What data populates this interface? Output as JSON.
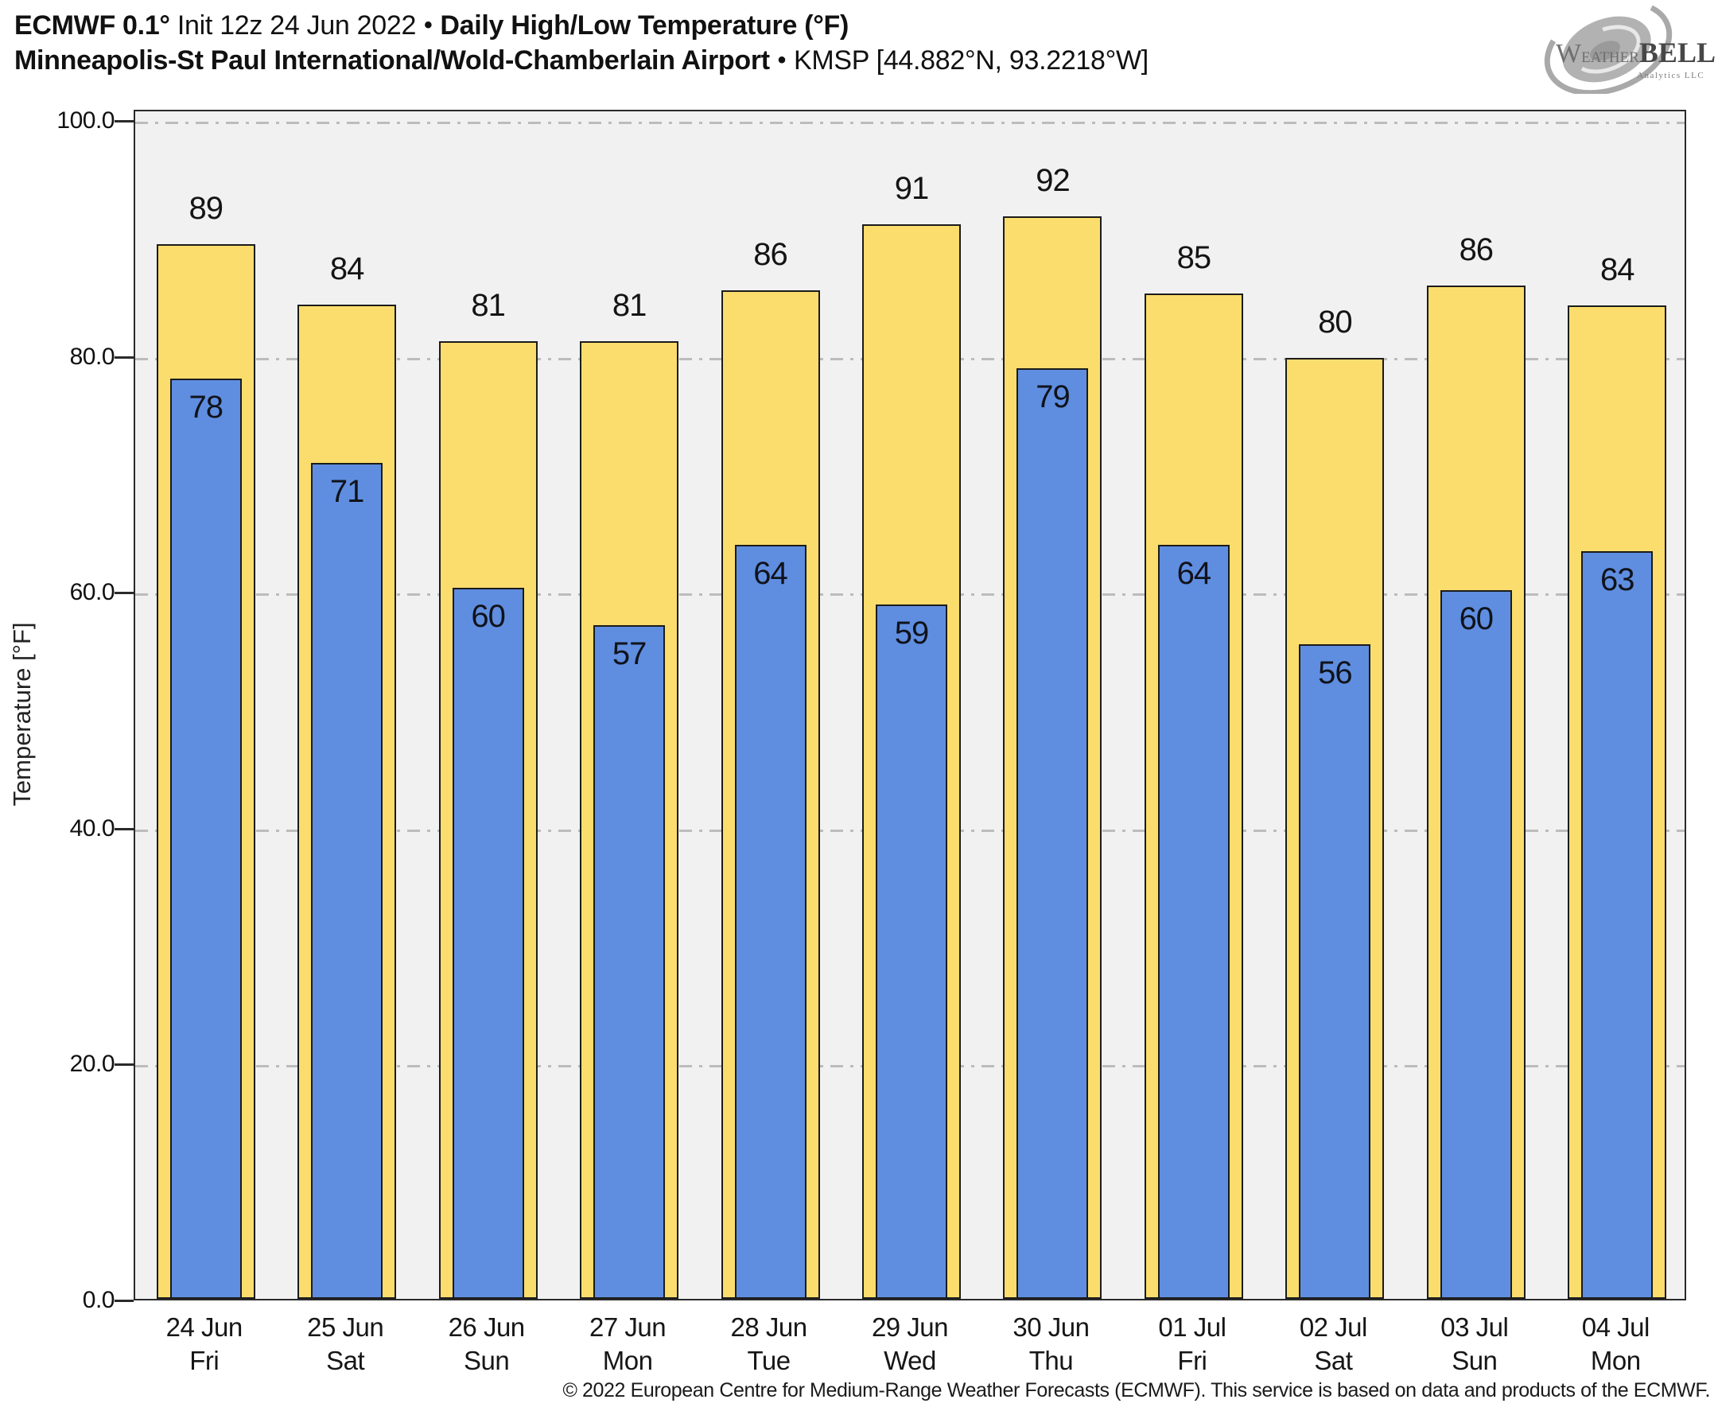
{
  "header": {
    "title_bold1": "ECMWF 0.1°",
    "title_regular": "Init 12z 24 Jun 2022",
    "bullet": "•",
    "title_bold2": "Daily High/Low Temperature (°F)",
    "subtitle_bold": "Minneapolis-St Paul International/Wold-Chamberlain Airport",
    "subtitle_regular": "KMSP [44.882°N, 93.2218°W]"
  },
  "logo": {
    "word_w": "W",
    "word_eather": "EATHER",
    "word_bell": "BELL",
    "tagline": "Analytics LLC"
  },
  "chart_data": {
    "type": "bar",
    "title": "ECMWF 0.1° Init 12z 24 Jun 2022 • Daily High/Low Temperature (°F) — Minneapolis-St Paul International/Wold-Chamberlain Airport KMSP",
    "xlabel": "",
    "ylabel": "Temperature [°F]",
    "ylim": [
      0,
      101
    ],
    "grid": true,
    "legend_position": "none",
    "yticks": [
      0,
      20,
      40,
      60,
      80,
      100
    ],
    "ytick_labels": [
      "0.0",
      "20.0",
      "40.0",
      "60.0",
      "80.0",
      "100.0"
    ],
    "categories": [
      {
        "date": "24 Jun",
        "day": "Fri"
      },
      {
        "date": "25 Jun",
        "day": "Sat"
      },
      {
        "date": "26 Jun",
        "day": "Sun"
      },
      {
        "date": "27 Jun",
        "day": "Mon"
      },
      {
        "date": "28 Jun",
        "day": "Tue"
      },
      {
        "date": "29 Jun",
        "day": "Wed"
      },
      {
        "date": "30 Jun",
        "day": "Thu"
      },
      {
        "date": "01 Jul",
        "day": "Fri"
      },
      {
        "date": "02 Jul",
        "day": "Sat"
      },
      {
        "date": "03 Jul",
        "day": "Sun"
      },
      {
        "date": "04 Jul",
        "day": "Mon"
      }
    ],
    "series": [
      {
        "name": "Daily High",
        "color": "#fbdd6d",
        "values": [
          89,
          84,
          81,
          81,
          86,
          91,
          92,
          85,
          80,
          86,
          84
        ],
        "plot_heights": [
          89.4,
          84.3,
          81.2,
          81.2,
          85.5,
          91.1,
          91.8,
          85.2,
          79.8,
          85.9,
          84.2
        ]
      },
      {
        "name": "Daily Low",
        "color": "#5f8ee0",
        "values": [
          78,
          71,
          60,
          57,
          64,
          59,
          79,
          64,
          56,
          60,
          63
        ],
        "plot_heights": [
          78.0,
          70.9,
          60.3,
          57.1,
          63.9,
          58.9,
          78.9,
          63.9,
          55.5,
          60.1,
          63.4
        ]
      }
    ]
  },
  "footer": {
    "copyright": "© 2022 European Centre for Medium-Range Weather Forecasts (ECMWF). This service is based on data and products of the ECMWF."
  }
}
